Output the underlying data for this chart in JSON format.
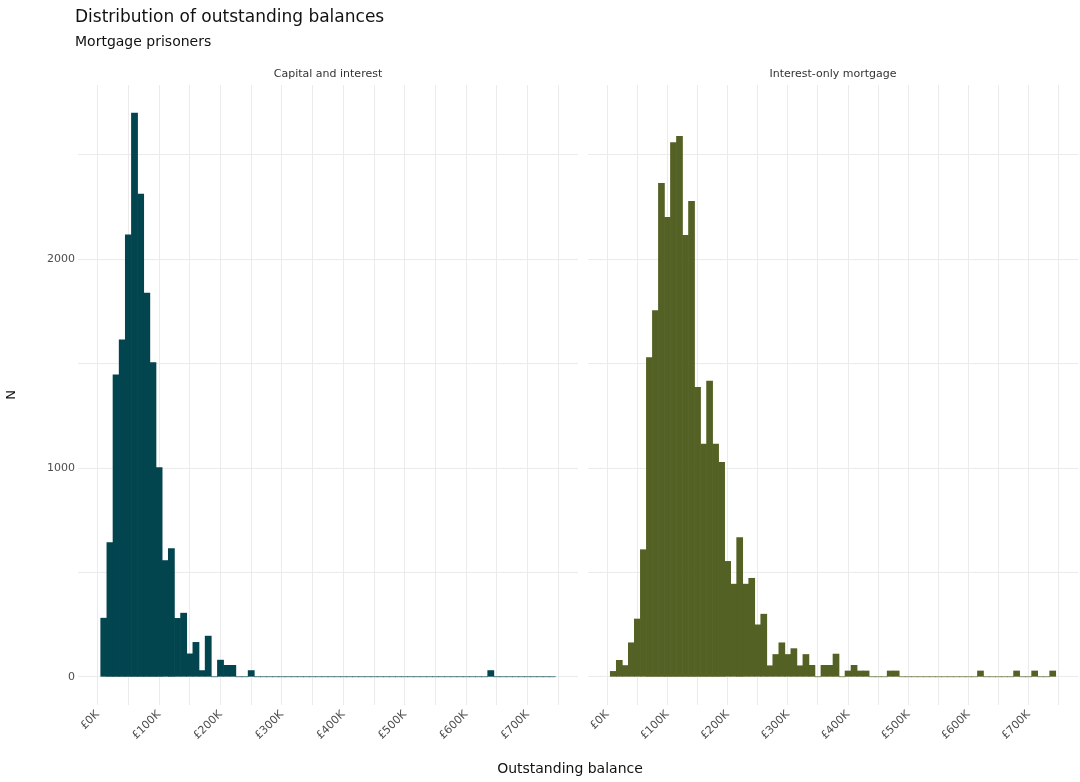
{
  "chart_data": [
    {
      "type": "histogram",
      "title": "Distribution of outstanding balances",
      "subtitle": "Mortgage prisoners",
      "xlabel": "Outstanding balance",
      "ylabel": "N",
      "bins": [
        5000,
        15000,
        25000,
        35000,
        45000,
        55000,
        65000,
        75000,
        85000,
        95000,
        105000,
        115000,
        125000,
        135000,
        145000,
        155000,
        165000,
        175000,
        185000,
        195000,
        205000,
        215000,
        225000,
        235000,
        245000,
        255000,
        265000,
        275000,
        285000,
        295000,
        305000,
        315000,
        325000,
        335000,
        345000,
        355000,
        365000,
        375000,
        385000,
        395000,
        405000,
        415000,
        425000,
        435000,
        445000,
        455000,
        465000,
        475000,
        485000,
        495000,
        505000,
        515000,
        525000,
        535000,
        545000,
        555000,
        565000,
        575000,
        585000,
        595000,
        605000,
        615000,
        625000,
        635000,
        645000,
        655000,
        665000,
        675000,
        685000,
        695000,
        705000,
        715000,
        725000,
        735000,
        745000
      ],
      "series": [
        {
          "name": "Capital and interest",
          "color": "#03454f",
          "values": [
            281,
            643,
            1447,
            1614,
            2117,
            2700,
            2312,
            1838,
            1505,
            1002,
            557,
            614,
            280,
            305,
            110,
            165,
            30,
            195,
            0,
            80,
            55,
            55,
            0,
            0,
            30,
            0,
            0,
            0,
            0,
            0,
            0,
            0,
            0,
            0,
            0,
            0,
            0,
            0,
            0,
            0,
            0,
            0,
            0,
            0,
            0,
            0,
            0,
            0,
            0,
            0,
            0,
            0,
            0,
            0,
            0,
            0,
            0,
            0,
            0,
            0,
            0,
            0,
            0,
            30,
            0,
            0,
            0,
            0,
            0,
            0,
            0,
            0,
            0,
            0
          ]
        }
      ],
      "xlim": [
        -32000,
        782000
      ],
      "ylim": [
        -135,
        2835
      ],
      "xticks": [
        {
          "value": 0,
          "label": "£0K"
        },
        {
          "value": 50000,
          "label": null
        },
        {
          "value": 100000,
          "label": "£100K"
        },
        {
          "value": 150000,
          "label": null
        },
        {
          "value": 200000,
          "label": "£200K"
        },
        {
          "value": 250000,
          "label": null
        },
        {
          "value": 300000,
          "label": "£300K"
        },
        {
          "value": 350000,
          "label": null
        },
        {
          "value": 400000,
          "label": "£400K"
        },
        {
          "value": 450000,
          "label": null
        },
        {
          "value": 500000,
          "label": "£500K"
        },
        {
          "value": 550000,
          "label": null
        },
        {
          "value": 600000,
          "label": "£600K"
        },
        {
          "value": 650000,
          "label": null
        },
        {
          "value": 700000,
          "label": "£700K"
        },
        {
          "value": 750000,
          "label": null
        }
      ],
      "yticks": [
        0,
        {
          "value": 500,
          "label": null
        },
        1000,
        {
          "value": 1500,
          "label": null
        },
        2000,
        {
          "value": 2500,
          "label": null
        }
      ],
      "grid": true
    },
    {
      "type": "histogram",
      "bins": [
        5000,
        15000,
        25000,
        35000,
        45000,
        55000,
        65000,
        75000,
        85000,
        95000,
        105000,
        115000,
        125000,
        135000,
        145000,
        155000,
        165000,
        175000,
        185000,
        195000,
        205000,
        215000,
        225000,
        235000,
        245000,
        255000,
        265000,
        275000,
        285000,
        295000,
        305000,
        315000,
        325000,
        335000,
        345000,
        355000,
        365000,
        375000,
        385000,
        395000,
        405000,
        415000,
        425000,
        435000,
        445000,
        455000,
        465000,
        475000,
        485000,
        495000,
        505000,
        515000,
        525000,
        535000,
        545000,
        555000,
        565000,
        575000,
        585000,
        595000,
        605000,
        615000,
        625000,
        635000,
        645000,
        655000,
        665000,
        675000,
        685000,
        695000,
        705000,
        715000,
        725000,
        735000,
        745000
      ],
      "series": [
        {
          "name": "Interest-only mortgage",
          "color": "#546124",
          "values": [
            26,
            79,
            54,
            163,
            277,
            609,
            1529,
            1754,
            2364,
            2201,
            2559,
            2589,
            2115,
            2278,
            1387,
            1115,
            1417,
            1115,
            1027,
            553,
            444,
            667,
            444,
            472,
            249,
            300,
            53,
            107,
            163,
            107,
            135,
            53,
            107,
            55,
            0,
            55,
            55,
            109,
            0,
            28,
            55,
            28,
            28,
            0,
            0,
            0,
            28,
            28,
            0,
            0,
            0,
            0,
            0,
            0,
            0,
            0,
            0,
            0,
            0,
            0,
            0,
            28,
            0,
            0,
            0,
            0,
            0,
            28,
            0,
            0,
            28,
            0,
            0,
            28
          ]
        }
      ],
      "xlim": [
        -32000,
        782000
      ],
      "ylim": [
        -135,
        2835
      ],
      "xticks": [
        {
          "value": 0,
          "label": "£0K"
        },
        {
          "value": 50000,
          "label": null
        },
        {
          "value": 100000,
          "label": "£100K"
        },
        {
          "value": 150000,
          "label": null
        },
        {
          "value": 200000,
          "label": "£200K"
        },
        {
          "value": 250000,
          "label": null
        },
        {
          "value": 300000,
          "label": "£300K"
        },
        {
          "value": 350000,
          "label": null
        },
        {
          "value": 400000,
          "label": "£400K"
        },
        {
          "value": 450000,
          "label": null
        },
        {
          "value": 500000,
          "label": "£500K"
        },
        {
          "value": 550000,
          "label": null
        },
        {
          "value": 600000,
          "label": "£600K"
        },
        {
          "value": 650000,
          "label": null
        },
        {
          "value": 700000,
          "label": "£700K"
        },
        {
          "value": 750000,
          "label": null
        }
      ],
      "yticks": [
        0,
        {
          "value": 500,
          "label": null
        },
        1000,
        {
          "value": 1500,
          "label": null
        },
        2000,
        {
          "value": 2500,
          "label": null
        }
      ],
      "grid": true,
      "tick_labels": "x"
    }
  ]
}
